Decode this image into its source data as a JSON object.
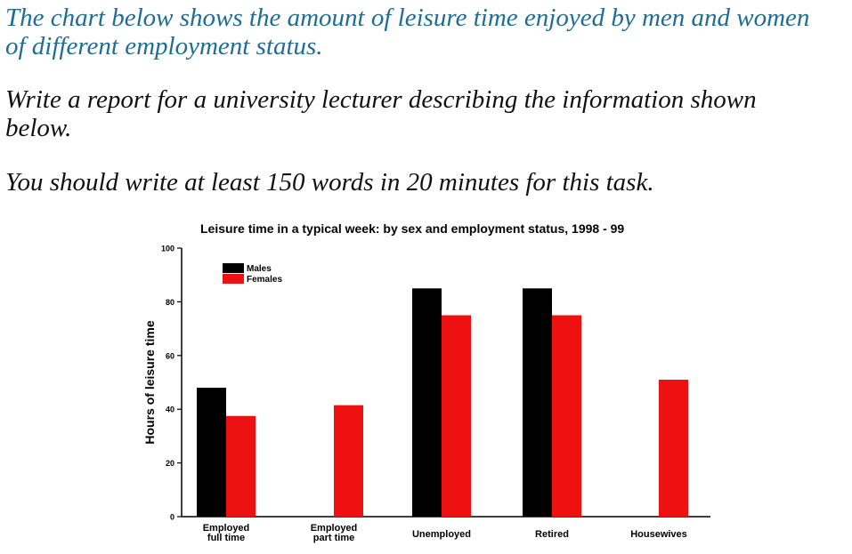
{
  "prompt": {
    "intro_line1": "The chart below shows the amount of leisure time enjoyed by men and women",
    "intro_line2": "of different employment status.",
    "task_line1": "Write a report for a university lecturer describing the information shown",
    "task_line2": "below.",
    "time_line": "You should write at least 150 words in 20 minutes for this task."
  },
  "colors": {
    "intro_text": "#1f6d94",
    "males": "#000000",
    "females": "#ee1111"
  },
  "chart_data": {
    "type": "bar",
    "title": "Leisure time in a typical week: by sex and employment status, 1998 - 99",
    "xlabel": "",
    "ylabel": "Hours of leisure time",
    "ylim": [
      0,
      100
    ],
    "yticks": [
      0,
      20,
      40,
      60,
      80,
      100
    ],
    "categories": [
      [
        "Employed",
        "full time"
      ],
      [
        "Employed",
        "part time"
      ],
      [
        "Unemployed"
      ],
      [
        "Retired"
      ],
      [
        "Housewives"
      ]
    ],
    "series": [
      {
        "name": "Males",
        "values": [
          48,
          null,
          85,
          85,
          null
        ]
      },
      {
        "name": "Females",
        "values": [
          37.5,
          41.5,
          75,
          75,
          51
        ]
      }
    ],
    "legend": "top-left",
    "grid": false
  }
}
